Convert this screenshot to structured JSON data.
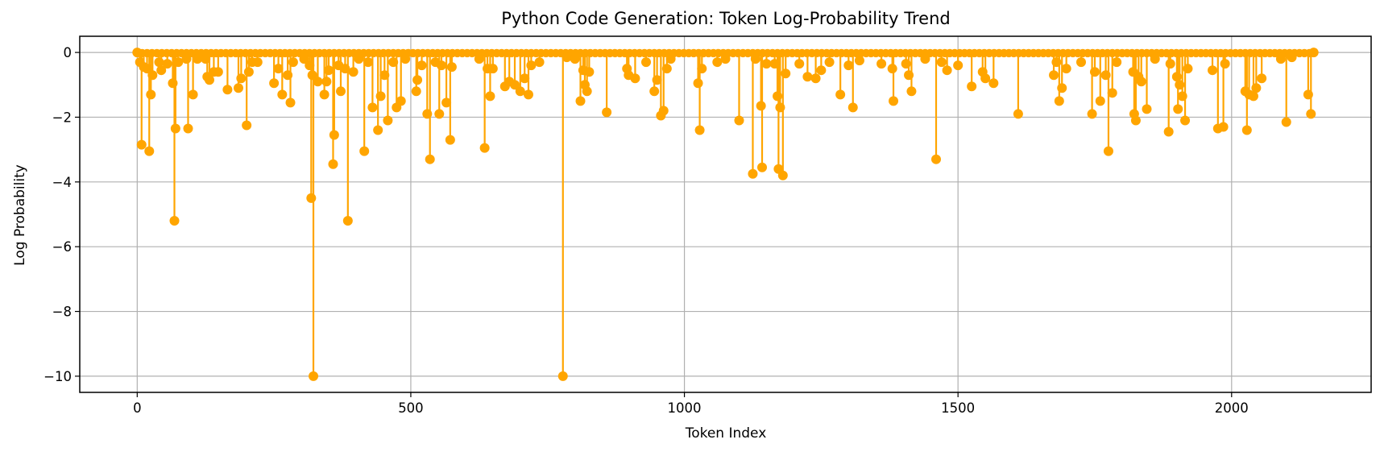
{
  "chart_data": {
    "type": "line",
    "title": "Python Code Generation: Token Log-Probability Trend",
    "xlabel": "Token Index",
    "ylabel": "Log Probability",
    "xlim": [
      -105,
      2255
    ],
    "ylim": [
      -10.5,
      0.5
    ],
    "xticks": [
      0,
      500,
      1000,
      1500,
      2000
    ],
    "yticks": [
      0,
      -2,
      -4,
      -6,
      -8,
      -10
    ],
    "grid": true,
    "colors": {
      "series": "#FFA500",
      "axes": "#000000",
      "grid": "#b0b0b0"
    },
    "marker": "circle",
    "baseline_value": -0.02,
    "x_max_index": 2150,
    "series": [
      {
        "points": [
          [
            0,
            0
          ],
          [
            5,
            -0.3
          ],
          [
            8,
            -2.85
          ],
          [
            12,
            -0.45
          ],
          [
            18,
            -0.5
          ],
          [
            22,
            -3.05
          ],
          [
            25,
            -1.3
          ],
          [
            28,
            -0.7
          ],
          [
            40,
            -0.3
          ],
          [
            44,
            -0.55
          ],
          [
            55,
            -0.35
          ],
          [
            65,
            -0.95
          ],
          [
            68,
            -5.2
          ],
          [
            70,
            -2.35
          ],
          [
            75,
            -0.3
          ],
          [
            90,
            -0.2
          ],
          [
            93,
            -2.35
          ],
          [
            102,
            -1.3
          ],
          [
            110,
            -0.2
          ],
          [
            125,
            -0.2
          ],
          [
            128,
            -0.75
          ],
          [
            132,
            -0.85
          ],
          [
            140,
            -0.6
          ],
          [
            148,
            -0.6
          ],
          [
            165,
            -1.15
          ],
          [
            185,
            -1.1
          ],
          [
            190,
            -0.8
          ],
          [
            200,
            -2.25
          ],
          [
            204,
            -0.6
          ],
          [
            210,
            -0.3
          ],
          [
            220,
            -0.3
          ],
          [
            250,
            -0.95
          ],
          [
            258,
            -0.5
          ],
          [
            265,
            -1.3
          ],
          [
            275,
            -0.7
          ],
          [
            280,
            -1.55
          ],
          [
            285,
            -0.3
          ],
          [
            305,
            -0.2
          ],
          [
            315,
            -0.4
          ],
          [
            318,
            -4.5
          ],
          [
            320,
            -0.7
          ],
          [
            322,
            -10.0
          ],
          [
            330,
            -0.9
          ],
          [
            342,
            -1.3
          ],
          [
            346,
            -0.9
          ],
          [
            350,
            -0.55
          ],
          [
            358,
            -3.45
          ],
          [
            360,
            -2.55
          ],
          [
            368,
            -0.4
          ],
          [
            372,
            -1.2
          ],
          [
            380,
            -0.5
          ],
          [
            385,
            -5.2
          ],
          [
            395,
            -0.6
          ],
          [
            405,
            -0.2
          ],
          [
            415,
            -3.05
          ],
          [
            422,
            -0.3
          ],
          [
            430,
            -1.7
          ],
          [
            440,
            -2.4
          ],
          [
            445,
            -1.35
          ],
          [
            452,
            -0.7
          ],
          [
            458,
            -2.1
          ],
          [
            468,
            -0.3
          ],
          [
            474,
            -1.7
          ],
          [
            482,
            -1.5
          ],
          [
            490,
            -0.2
          ],
          [
            510,
            -1.2
          ],
          [
            512,
            -0.85
          ],
          [
            520,
            -0.4
          ],
          [
            530,
            -1.9
          ],
          [
            535,
            -3.3
          ],
          [
            545,
            -0.3
          ],
          [
            552,
            -1.9
          ],
          [
            556,
            -0.4
          ],
          [
            565,
            -1.55
          ],
          [
            572,
            -2.7
          ],
          [
            575,
            -0.45
          ],
          [
            625,
            -0.2
          ],
          [
            635,
            -2.95
          ],
          [
            640,
            -0.5
          ],
          [
            645,
            -1.35
          ],
          [
            650,
            -0.5
          ],
          [
            672,
            -1.05
          ],
          [
            680,
            -0.9
          ],
          [
            690,
            -1.0
          ],
          [
            700,
            -1.2
          ],
          [
            708,
            -0.8
          ],
          [
            715,
            -1.3
          ],
          [
            720,
            -0.4
          ],
          [
            735,
            -0.3
          ],
          [
            778,
            -10.0
          ],
          [
            785,
            -0.15
          ],
          [
            800,
            -0.2
          ],
          [
            810,
            -1.5
          ],
          [
            815,
            -0.55
          ],
          [
            818,
            -1.0
          ],
          [
            822,
            -1.2
          ],
          [
            826,
            -0.6
          ],
          [
            858,
            -1.85
          ],
          [
            895,
            -0.5
          ],
          [
            898,
            -0.7
          ],
          [
            910,
            -0.8
          ],
          [
            930,
            -0.3
          ],
          [
            945,
            -1.2
          ],
          [
            950,
            -0.85
          ],
          [
            957,
            -1.95
          ],
          [
            962,
            -1.8
          ],
          [
            968,
            -0.5
          ],
          [
            975,
            -0.2
          ],
          [
            1025,
            -0.95
          ],
          [
            1028,
            -2.4
          ],
          [
            1032,
            -0.5
          ],
          [
            1060,
            -0.3
          ],
          [
            1075,
            -0.2
          ],
          [
            1100,
            -2.1
          ],
          [
            1125,
            -3.75
          ],
          [
            1130,
            -0.2
          ],
          [
            1140,
            -1.65
          ],
          [
            1142,
            -3.55
          ],
          [
            1150,
            -0.35
          ],
          [
            1165,
            -0.35
          ],
          [
            1170,
            -1.35
          ],
          [
            1172,
            -3.6
          ],
          [
            1175,
            -1.7
          ],
          [
            1180,
            -3.8
          ],
          [
            1185,
            -0.65
          ],
          [
            1210,
            -0.35
          ],
          [
            1225,
            -0.75
          ],
          [
            1240,
            -0.8
          ],
          [
            1250,
            -0.55
          ],
          [
            1265,
            -0.3
          ],
          [
            1285,
            -1.3
          ],
          [
            1300,
            -0.4
          ],
          [
            1308,
            -1.7
          ],
          [
            1320,
            -0.25
          ],
          [
            1360,
            -0.35
          ],
          [
            1380,
            -0.5
          ],
          [
            1382,
            -1.5
          ],
          [
            1405,
            -0.35
          ],
          [
            1410,
            -0.7
          ],
          [
            1415,
            -1.2
          ],
          [
            1440,
            -0.2
          ],
          [
            1460,
            -3.3
          ],
          [
            1470,
            -0.3
          ],
          [
            1480,
            -0.55
          ],
          [
            1500,
            -0.4
          ],
          [
            1525,
            -1.05
          ],
          [
            1545,
            -0.6
          ],
          [
            1550,
            -0.8
          ],
          [
            1565,
            -0.95
          ],
          [
            1610,
            -1.9
          ],
          [
            1675,
            -0.7
          ],
          [
            1680,
            -0.3
          ],
          [
            1685,
            -1.5
          ],
          [
            1690,
            -1.1
          ],
          [
            1698,
            -0.5
          ],
          [
            1725,
            -0.3
          ],
          [
            1745,
            -1.9
          ],
          [
            1750,
            -0.6
          ],
          [
            1760,
            -1.5
          ],
          [
            1770,
            -0.7
          ],
          [
            1775,
            -3.05
          ],
          [
            1782,
            -1.25
          ],
          [
            1790,
            -0.3
          ],
          [
            1820,
            -0.6
          ],
          [
            1822,
            -1.9
          ],
          [
            1825,
            -2.1
          ],
          [
            1830,
            -0.75
          ],
          [
            1835,
            -0.9
          ],
          [
            1845,
            -1.75
          ],
          [
            1860,
            -0.2
          ],
          [
            1885,
            -2.45
          ],
          [
            1888,
            -0.35
          ],
          [
            1900,
            -0.75
          ],
          [
            1902,
            -1.75
          ],
          [
            1905,
            -1.0
          ],
          [
            1910,
            -1.35
          ],
          [
            1915,
            -2.1
          ],
          [
            1920,
            -0.5
          ],
          [
            1965,
            -0.55
          ],
          [
            1975,
            -2.35
          ],
          [
            1985,
            -2.3
          ],
          [
            1988,
            -0.35
          ],
          [
            2025,
            -1.2
          ],
          [
            2028,
            -2.4
          ],
          [
            2032,
            -1.3
          ],
          [
            2040,
            -1.35
          ],
          [
            2045,
            -1.1
          ],
          [
            2055,
            -0.8
          ],
          [
            2090,
            -0.2
          ],
          [
            2100,
            -2.15
          ],
          [
            2110,
            -0.15
          ],
          [
            2140,
            -1.3
          ],
          [
            2145,
            -1.9
          ],
          [
            2150,
            0
          ]
        ]
      }
    ]
  }
}
